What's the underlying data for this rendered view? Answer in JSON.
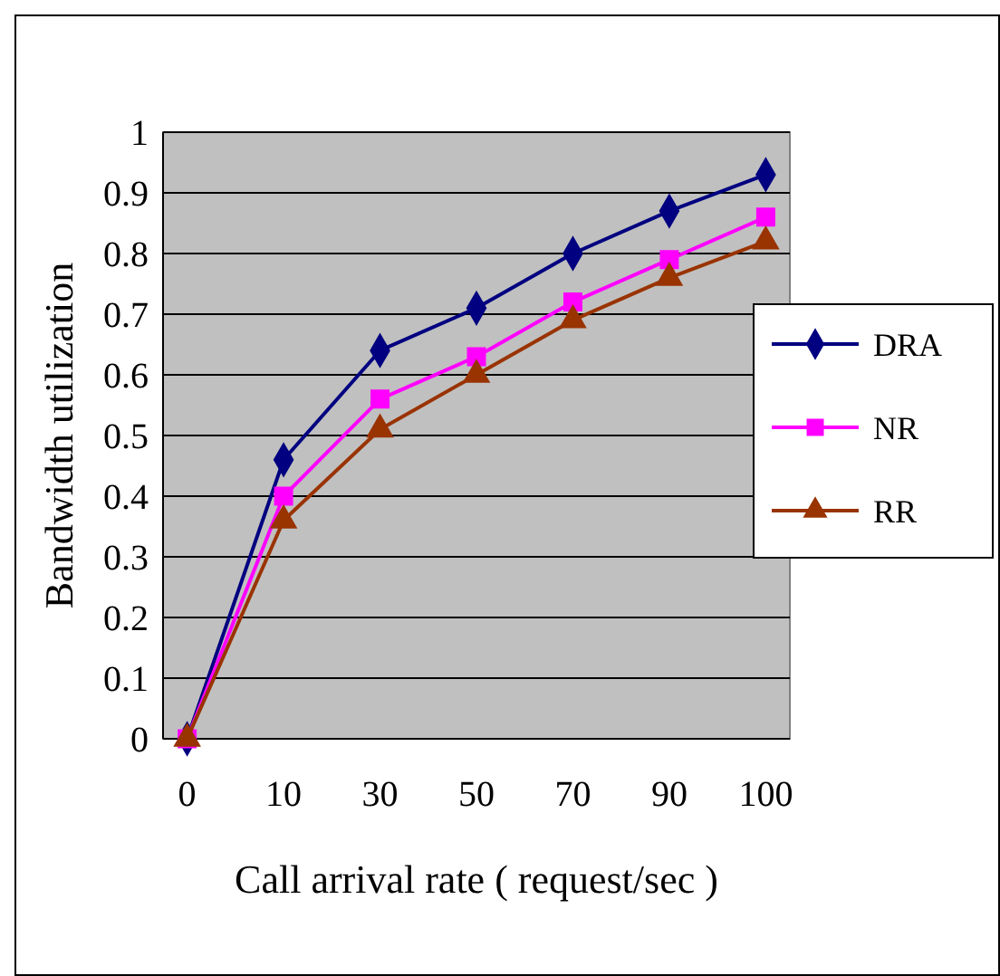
{
  "chart_data": {
    "type": "line",
    "xlabel": "Call arrival rate ( request/sec )",
    "ylabel": "Bandwidth utilization",
    "categories": [
      "0",
      "10",
      "30",
      "50",
      "70",
      "90",
      "100"
    ],
    "ylim": [
      0,
      1
    ],
    "yticks": [
      0,
      0.1,
      0.2,
      0.3,
      0.4,
      0.5,
      0.6,
      0.7,
      0.8,
      0.9,
      1
    ],
    "grid": "y",
    "legend": "right",
    "series": [
      {
        "name": "DRA",
        "color": "#000080",
        "marker": "diamond",
        "values": [
          0,
          0.46,
          0.64,
          0.71,
          0.8,
          0.87,
          0.93
        ]
      },
      {
        "name": "NR",
        "color": "#ff00ff",
        "marker": "square",
        "values": [
          0,
          0.4,
          0.56,
          0.63,
          0.72,
          0.79,
          0.86
        ]
      },
      {
        "name": "RR",
        "color": "#993300",
        "marker": "triangle",
        "values": [
          0,
          0.36,
          0.51,
          0.6,
          0.69,
          0.76,
          0.82
        ]
      }
    ]
  }
}
